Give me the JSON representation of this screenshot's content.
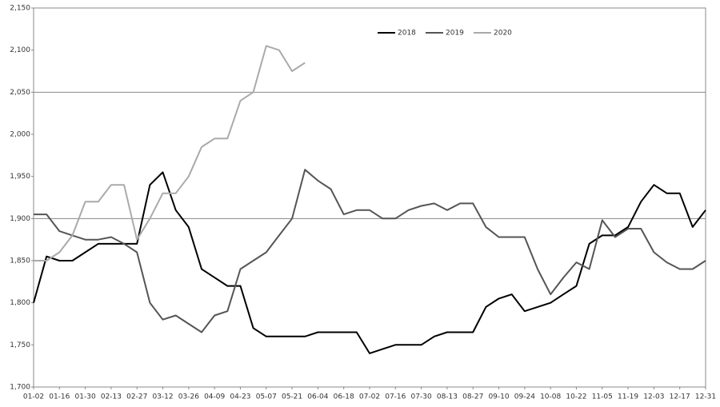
{
  "chart_data": {
    "type": "line",
    "x": [
      "01-02",
      null,
      "01-16",
      null,
      "01-30",
      null,
      "02-13",
      null,
      "02-27",
      null,
      "03-12",
      null,
      "03-26",
      null,
      "04-09",
      null,
      "04-23",
      null,
      "05-07",
      null,
      "05-21",
      null,
      "06-04",
      null,
      "06-18",
      null,
      "07-02",
      null,
      "07-16",
      null,
      "07-30",
      null,
      "08-13",
      null,
      "08-27",
      null,
      "09-10",
      null,
      "09-24",
      null,
      "10-08",
      null,
      "10-22",
      null,
      "11-05",
      null,
      "11-19",
      null,
      "12-03",
      null,
      "12-17",
      null,
      "12-31"
    ],
    "series": [
      {
        "name": "2018",
        "color": "#000000",
        "values": [
          1800,
          1855,
          1850,
          1850,
          1860,
          1870,
          1870,
          1870,
          1870,
          1940,
          1955,
          1910,
          1890,
          1840,
          1830,
          1820,
          1820,
          1770,
          1760,
          1760,
          1760,
          1760,
          1765,
          1765,
          1765,
          1765,
          1740,
          1745,
          1750,
          1750,
          1750,
          1760,
          1765,
          1765,
          1765,
          1795,
          1805,
          1810,
          1790,
          1795,
          1800,
          1810,
          1820,
          1870,
          1880,
          1880,
          1890,
          1920,
          1940,
          1930,
          1930,
          1890,
          1910
        ]
      },
      {
        "name": "2019",
        "color": "#555555",
        "values": [
          1905,
          1905,
          1885,
          1880,
          1875,
          1875,
          1878,
          1870,
          1860,
          1800,
          1780,
          1785,
          1775,
          1765,
          1785,
          1790,
          1840,
          1850,
          1860,
          1880,
          1900,
          1958,
          1945,
          1935,
          1905,
          1910,
          1910,
          1900,
          1900,
          1910,
          1915,
          1918,
          1910,
          1918,
          1918,
          1890,
          1878,
          1878,
          1878,
          1840,
          1810,
          1830,
          1848,
          1840,
          1898,
          1878,
          1888,
          1888,
          1860,
          1848,
          1840,
          1840,
          1850
        ]
      },
      {
        "name": "2020",
        "color": "#aaaaaa",
        "values": [
          1850,
          1850,
          1860,
          1880,
          1920,
          1920,
          1940,
          1940,
          1875,
          1900,
          1930,
          1930,
          1950,
          1985,
          1995,
          1995,
          2040,
          2050,
          2105,
          2100,
          2075,
          2085,
          null,
          null,
          null,
          null,
          null,
          null,
          null,
          null,
          null,
          null,
          null,
          null,
          null,
          null,
          null,
          null,
          null,
          null,
          null,
          null,
          null,
          null,
          null,
          null,
          null,
          null,
          null,
          null,
          null,
          null,
          null
        ]
      }
    ],
    "ylim": [
      1700,
      2150
    ],
    "yticks": [
      {
        "value": 1700,
        "label": "1,700"
      },
      {
        "value": 1750,
        "label": "1,750"
      },
      {
        "value": 1800,
        "label": "1,800"
      },
      {
        "value": 1850,
        "label": "1,850"
      },
      {
        "value": 1900,
        "label": "1,900"
      },
      {
        "value": 1950,
        "label": "1,950"
      },
      {
        "value": 2000,
        "label": "2,000"
      },
      {
        "value": 2050,
        "label": "2,050"
      },
      {
        "value": 2100,
        "label": "2,100"
      },
      {
        "value": 2150,
        "label": "2,150"
      }
    ],
    "grid_lines": [
      1900,
      2050
    ],
    "legend": "top"
  }
}
